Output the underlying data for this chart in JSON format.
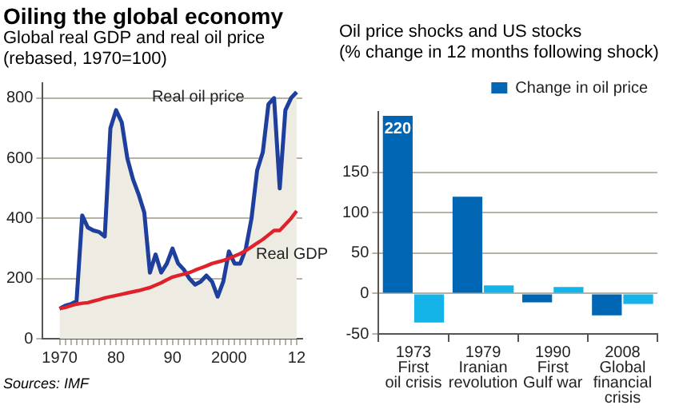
{
  "chart_data": [
    {
      "type": "line",
      "title": "Oiling the global economy",
      "subtitle": "Global real GDP and real oil price\n(rebased, 1970=100)",
      "x": [
        1970,
        1971,
        1972,
        1973,
        1974,
        1975,
        1976,
        1977,
        1978,
        1979,
        1980,
        1981,
        1982,
        1983,
        1984,
        1985,
        1986,
        1987,
        1988,
        1989,
        1990,
        1991,
        1992,
        1993,
        1994,
        1995,
        1996,
        1997,
        1998,
        1999,
        2000,
        2001,
        2002,
        2003,
        2004,
        2005,
        2006,
        2007,
        2008,
        2009,
        2010,
        2011,
        2012
      ],
      "series": [
        {
          "name": "Real oil price",
          "type": "area",
          "color": "#1f3f9e",
          "values": [
            100,
            110,
            115,
            125,
            410,
            370,
            360,
            355,
            340,
            700,
            760,
            720,
            600,
            530,
            480,
            420,
            220,
            280,
            220,
            250,
            300,
            250,
            230,
            200,
            180,
            190,
            210,
            190,
            140,
            190,
            290,
            250,
            250,
            300,
            400,
            560,
            620,
            780,
            800,
            500,
            760,
            800,
            820
          ]
        },
        {
          "name": "Real GDP",
          "type": "line",
          "color": "#e0202a",
          "values": [
            100,
            104,
            110,
            115,
            118,
            120,
            125,
            130,
            136,
            140,
            144,
            148,
            152,
            156,
            160,
            165,
            170,
            178,
            186,
            196,
            205,
            210,
            215,
            220,
            228,
            235,
            242,
            250,
            255,
            260,
            267,
            275,
            283,
            293,
            305,
            318,
            330,
            345,
            360,
            360,
            380,
            400,
            425
          ]
        }
      ],
      "xlim": [
        1967,
        2013
      ],
      "ylim": [
        0,
        850
      ],
      "yticks": [
        0,
        200,
        400,
        600,
        800
      ],
      "xticks": [
        1970,
        {
          "value": 1971,
          "label": null
        },
        {
          "value": 1972,
          "label": null
        },
        {
          "value": 1973,
          "label": null
        },
        {
          "value": 1974,
          "label": null
        },
        {
          "value": 1975,
          "label": null
        },
        {
          "value": 1976,
          "label": null
        },
        {
          "value": 1977,
          "label": null
        },
        {
          "value": 1978,
          "label": null
        },
        {
          "value": 1979,
          "label": null
        },
        {
          "value": 1980,
          "label": "80"
        },
        {
          "value": 1981,
          "label": null
        },
        {
          "value": 1982,
          "label": null
        },
        {
          "value": 1983,
          "label": null
        },
        {
          "value": 1984,
          "label": null
        },
        {
          "value": 1985,
          "label": null
        },
        {
          "value": 1986,
          "label": null
        },
        {
          "value": 1987,
          "label": null
        },
        {
          "value": 1988,
          "label": null
        },
        {
          "value": 1989,
          "label": null
        },
        {
          "value": 1990,
          "label": "90"
        },
        {
          "value": 1991,
          "label": null
        },
        {
          "value": 1992,
          "label": null
        },
        {
          "value": 1993,
          "label": null
        },
        {
          "value": 1994,
          "label": null
        },
        {
          "value": 1995,
          "label": null
        },
        {
          "value": 1996,
          "label": null
        },
        {
          "value": 1997,
          "label": null
        },
        {
          "value": 1998,
          "label": null
        },
        {
          "value": 1999,
          "label": null
        },
        2000,
        {
          "value": 2001,
          "label": null
        },
        {
          "value": 2002,
          "label": null
        },
        {
          "value": 2003,
          "label": null
        },
        {
          "value": 2004,
          "label": null
        },
        {
          "value": 2005,
          "label": null
        },
        {
          "value": 2006,
          "label": null
        },
        {
          "value": 2007,
          "label": null
        },
        {
          "value": 2008,
          "label": null
        },
        {
          "value": 2009,
          "label": null
        },
        {
          "value": 2010,
          "label": null
        },
        {
          "value": 2011,
          "label": null
        },
        {
          "value": 2012,
          "label": "12"
        }
      ],
      "grid": "y",
      "legend": false,
      "marker": "none",
      "line_style": "solid",
      "annotations": [
        "Sources: IMF"
      ]
    },
    {
      "type": "bar",
      "title": "Oil price shocks and US stocks",
      "subtitle": "(% change in 12 months following shock)",
      "categories": [
        "1973\nFirst\noil crisis",
        "1979\nIranian\nrevolution",
        "1990\nFirst\nGulf war",
        "2008\nGlobal\nfinancial\ncrisis"
      ],
      "series": [
        {
          "name": "Change in oil price",
          "color": "#0066b3",
          "values": [
            220,
            120,
            -11,
            -27
          ],
          "value_labels": [
            "220",
            null,
            null,
            null
          ]
        },
        {
          "color": "#14b4e8",
          "values": [
            -36,
            10,
            8,
            -13
          ]
        }
      ],
      "ylim": [
        -50,
        225
      ],
      "yticks": [
        -50,
        0,
        50,
        100,
        150
      ],
      "grid": "y",
      "legend": "top right"
    }
  ]
}
